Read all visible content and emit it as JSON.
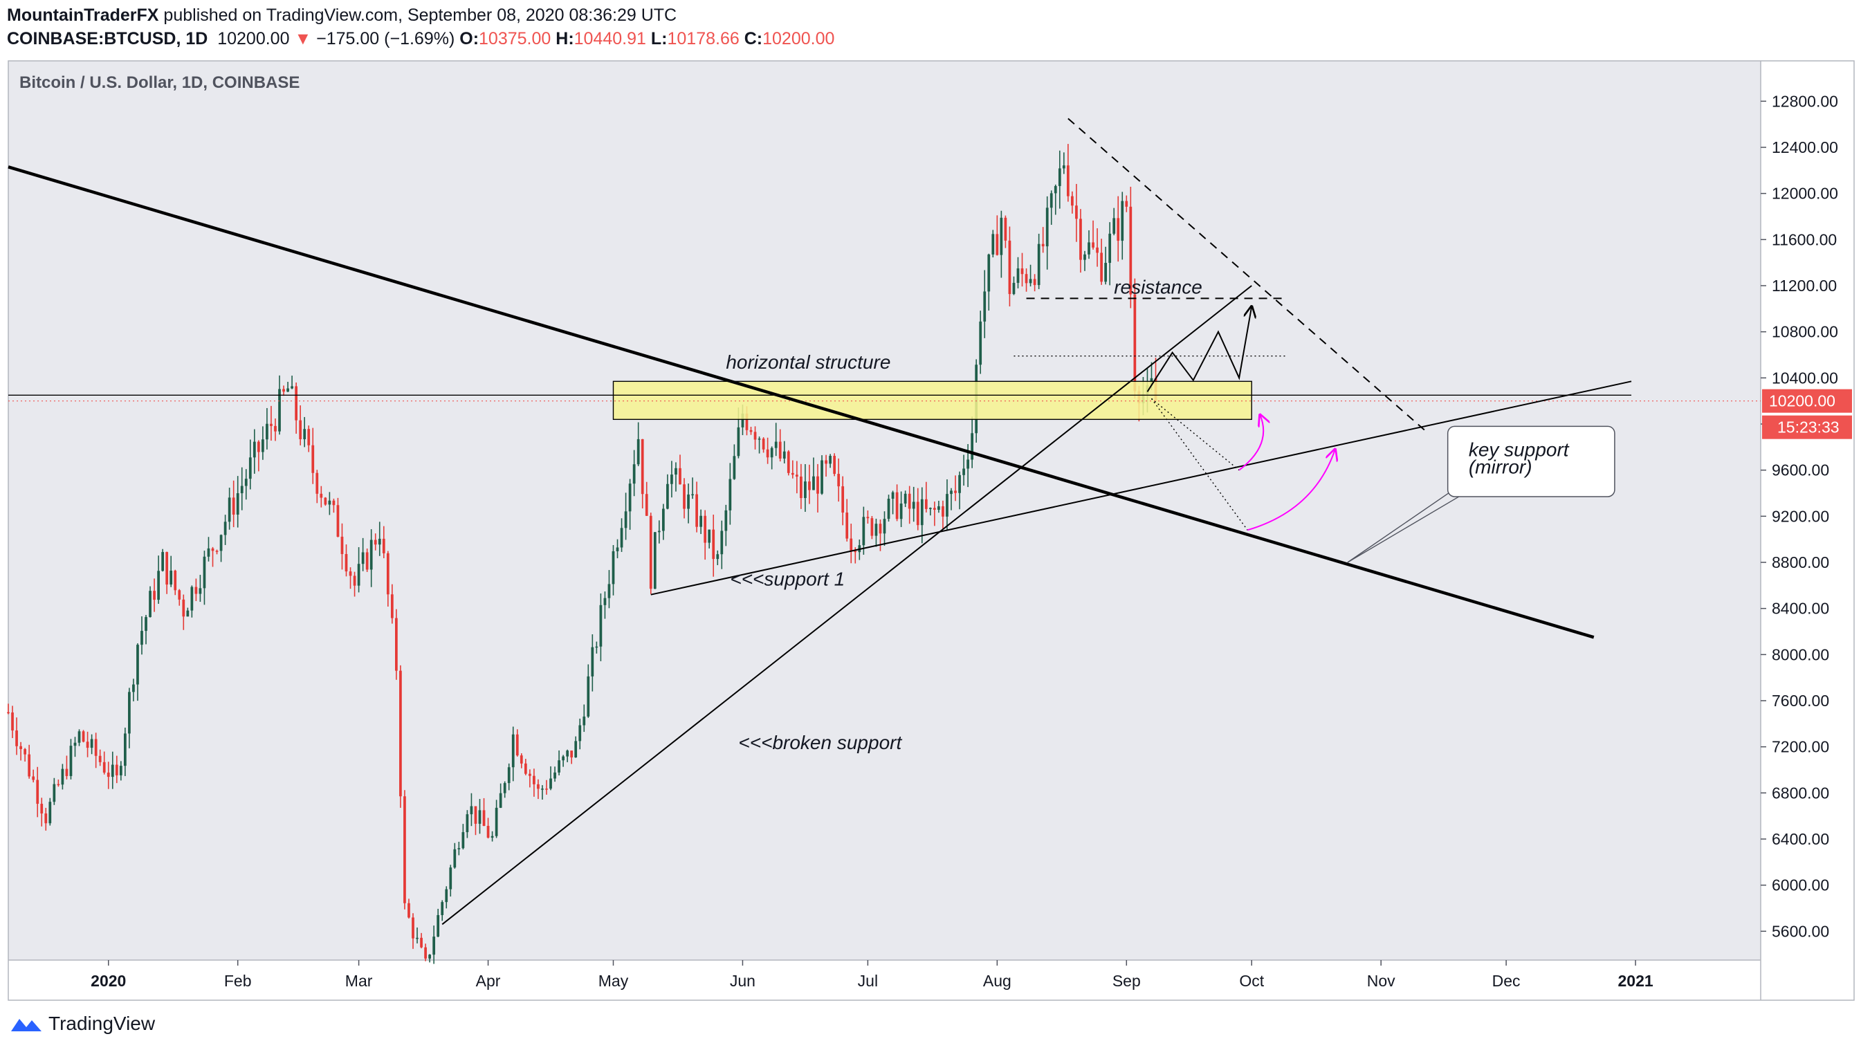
{
  "header": {
    "author": "MountainTraderFX",
    "published_text": "published on TradingView.com, September 08, 2020 08:36:29 UTC",
    "symbol": "COINBASE:BTCUSD, 1D",
    "last_price": "10200.00",
    "change": "−175.00 (−1.69%)",
    "open_label": "O:",
    "open_value": "10375.00",
    "high_label": "H:",
    "high_value": "10440.91",
    "low_label": "L:",
    "low_value": "10178.66",
    "close_label": "C:",
    "close_value": "10200.00"
  },
  "footer": {
    "brand": "TradingView"
  },
  "colors": {
    "up": "#26a69a",
    "down": "#ef5350",
    "candle_up": "#1f5e4a",
    "candle_down": "#e53935",
    "bg": "#e8e9ee",
    "zone": "#f7f38f",
    "arrow": "#ff00ff"
  },
  "chart_data": {
    "type": "candlestick",
    "title": "Bitcoin / U.S. Dollar, 1D, COINBASE",
    "y_axis": {
      "ticks": [
        5600,
        6000,
        6400,
        6800,
        7200,
        7600,
        8000,
        8400,
        8800,
        9200,
        9600,
        10000,
        10400,
        10800,
        11200,
        11600,
        12000,
        12400,
        12800
      ],
      "tick_labels": [
        "5600.00",
        "6000.00",
        "6400.00",
        "6800.00",
        "7200.00",
        "7600.00",
        "8000.00",
        "8400.00",
        "8800.00",
        "9200.00",
        "9600.00",
        "10000.00",
        "10400.00",
        "10800.00",
        "11200.00",
        "11600.00",
        "12000.00",
        "12400.00",
        "12800.00"
      ],
      "range": [
        5350,
        13150
      ],
      "position": "right"
    },
    "x_axis": {
      "range": [
        "2019-12-08",
        "2021-01-31"
      ],
      "ticks": [
        "2020-01-01",
        "2020-02-01",
        "2020-03-01",
        "2020-04-01",
        "2020-05-01",
        "2020-06-01",
        "2020-07-01",
        "2020-08-01",
        "2020-09-01",
        "2020-10-01",
        "2020-11-01",
        "2020-12-01",
        "2021-01-01"
      ],
      "tick_labels": [
        "2020",
        "Feb",
        "Mar",
        "Apr",
        "May",
        "Jun",
        "Jul",
        "Aug",
        "Sep",
        "Oct",
        "Nov",
        "Dec",
        "2021"
      ]
    },
    "price_label": "10200.00",
    "countdown_label": "15:23:33",
    "price_level": 10200,
    "keypoints": [
      [
        "2019-12-08",
        7500
      ],
      [
        "2019-12-17",
        6600
      ],
      [
        "2019-12-25",
        7300
      ],
      [
        "2020-01-03",
        6900
      ],
      [
        "2020-01-08",
        8100
      ],
      [
        "2020-01-14",
        8800
      ],
      [
        "2020-01-19",
        8400
      ],
      [
        "2020-02-01",
        9400
      ],
      [
        "2020-02-09",
        10000
      ],
      [
        "2020-02-13",
        10300
      ],
      [
        "2020-02-19",
        9600
      ],
      [
        "2020-02-25",
        9100
      ],
      [
        "2020-02-29",
        8600
      ],
      [
        "2020-03-06",
        9100
      ],
      [
        "2020-03-10",
        7900
      ],
      [
        "2020-03-12",
        5800
      ],
      [
        "2020-03-17",
        5300
      ],
      [
        "2020-03-22",
        6000
      ],
      [
        "2020-03-27",
        6700
      ],
      [
        "2020-04-02",
        6400
      ],
      [
        "2020-04-07",
        7300
      ],
      [
        "2020-04-13",
        6800
      ],
      [
        "2020-04-22",
        7200
      ],
      [
        "2020-04-30",
        8700
      ],
      [
        "2020-05-07",
        9900
      ],
      [
        "2020-05-10",
        8700
      ],
      [
        "2020-05-14",
        9600
      ],
      [
        "2020-05-21",
        9200
      ],
      [
        "2020-05-26",
        8800
      ],
      [
        "2020-06-01",
        10100
      ],
      [
        "2020-06-10",
        9700
      ],
      [
        "2020-06-15",
        9400
      ],
      [
        "2020-06-22",
        9600
      ],
      [
        "2020-06-27",
        9000
      ],
      [
        "2020-07-08",
        9300
      ],
      [
        "2020-07-16",
        9200
      ],
      [
        "2020-07-22",
        9400
      ],
      [
        "2020-07-26",
        9950
      ],
      [
        "2020-07-28",
        11000
      ],
      [
        "2020-08-02",
        11800
      ],
      [
        "2020-08-04",
        11200
      ],
      [
        "2020-08-11",
        11400
      ],
      [
        "2020-08-17",
        12300
      ],
      [
        "2020-08-21",
        11600
      ],
      [
        "2020-08-26",
        11400
      ],
      [
        "2020-09-01",
        11900
      ],
      [
        "2020-09-03",
        10400
      ],
      [
        "2020-09-06",
        10200
      ],
      [
        "2020-09-07",
        10300
      ],
      [
        "2020-09-08",
        10200
      ]
    ],
    "annotations": [
      "horizontal structure",
      "resistance",
      "<<<support 1",
      "<<<broken support",
      "key support",
      "(mirror)"
    ],
    "drawings": {
      "zone": {
        "from": "2020-05-01",
        "to": "2020-10-01",
        "low": 10040,
        "high": 10370
      },
      "long_downtrend": [
        [
          "2019-12-08",
          12230
        ],
        [
          "2020-12-22",
          8150
        ]
      ],
      "broken_support": [
        [
          "2020-03-21",
          5660
        ],
        [
          "2020-10-01",
          11200
        ]
      ],
      "support_1": [
        [
          "2020-05-10",
          8520
        ],
        [
          "2020-12-31",
          10370
        ]
      ],
      "descending_resistance": [
        [
          "2020-08-18",
          12650
        ],
        [
          "2020-11-12",
          9930
        ]
      ],
      "resistance_level": [
        [
          "2020-08-08",
          11090
        ],
        [
          "2020-10-09",
          11090
        ]
      ],
      "dotted_level": [
        [
          "2020-08-05",
          10590
        ],
        [
          "2020-10-09",
          10590
        ]
      ],
      "horizontal_line": [
        [
          "2019-12-08",
          10250
        ],
        [
          "2020-12-31",
          10250
        ]
      ]
    }
  }
}
